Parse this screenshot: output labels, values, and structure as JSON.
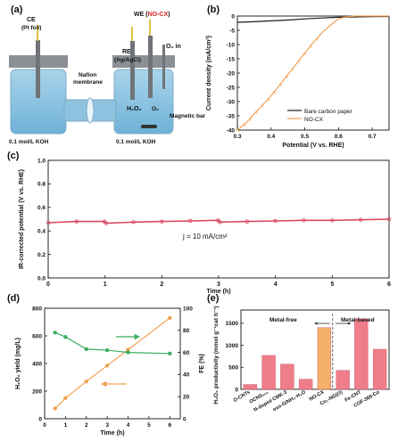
{
  "panels": {
    "a": {
      "label": "(a)",
      "ce_label": "CE",
      "ce_sub": "(Pt foil)",
      "re_label": "RE",
      "re_sub": "(Ag/AgCl)",
      "we_prefix": "WE (",
      "we_name": "NO-CX",
      "we_suffix": ")",
      "o2_label": "O₂ in",
      "membrane_label_1": "Nafion",
      "membrane_label_2": "membrane",
      "h2o2_label": "H₂O₂",
      "o2_cell_label": "O₂",
      "magnetic_label": "Magnetic bar",
      "electrolyte_left": "0.1 mol/L KOH",
      "electrolyte_right": "0.1 mol/L KOH"
    },
    "b": {
      "label": "(b)",
      "legend_1": "Bare carbon paper",
      "legend_2": "NO-CX"
    },
    "c": {
      "label": "(c)",
      "annotation": "j = 10 mA/cm²"
    },
    "d": {
      "label": "(d)"
    },
    "e": {
      "label": "(e)",
      "group_1": "Metal-free",
      "group_2": "Metal-based"
    }
  },
  "chart_data": [
    {
      "panel": "b",
      "type": "line",
      "xlabel": "Potential (V vs. RHE)",
      "ylabel": "Current density (mA/cm²)",
      "xlim": [
        0.3,
        0.75
      ],
      "ylim": [
        -40,
        0
      ],
      "xticks": [
        0.3,
        0.4,
        0.5,
        0.6,
        0.7
      ],
      "yticks": [
        0,
        -5,
        -10,
        -15,
        -20,
        -25,
        -30,
        -35,
        -40
      ],
      "legend_position": "bottom-right",
      "series": [
        {
          "name": "Bare carbon paper",
          "color": "#1a1a1a",
          "x": [
            0.3,
            0.35,
            0.4,
            0.45,
            0.5,
            0.55,
            0.6,
            0.65,
            0.7,
            0.75
          ],
          "y": [
            -2.2,
            -2.0,
            -1.7,
            -1.4,
            -1.0,
            -0.7,
            -0.45,
            -0.3,
            -0.2,
            -0.15
          ]
        },
        {
          "name": "NO-CX",
          "color": "#f2a054",
          "x": [
            0.3,
            0.33,
            0.36,
            0.4,
            0.44,
            0.48,
            0.52,
            0.55,
            0.58,
            0.6,
            0.62,
            0.65,
            0.7,
            0.75
          ],
          "y": [
            -40,
            -37,
            -33,
            -28,
            -22,
            -16,
            -10,
            -6,
            -2.8,
            -1.0,
            -0.3,
            0,
            0,
            0
          ]
        }
      ]
    },
    {
      "panel": "c",
      "type": "line",
      "xlabel": "Time (h)",
      "ylabel": "IR-corrected potential (V vs. RHE)",
      "xlim": [
        0,
        6
      ],
      "ylim": [
        0.0,
        1.0
      ],
      "xticks": [
        0,
        1,
        2,
        3,
        4,
        5,
        6
      ],
      "yticks": [
        0.0,
        0.2,
        0.4,
        0.6,
        0.8,
        1.0
      ],
      "series": [
        {
          "color": "#d9485f",
          "x": [
            0,
            0.5,
            0.99,
            1.02,
            1.5,
            2,
            2.5,
            2.99,
            3.02,
            3.5,
            4,
            4.5,
            5,
            5.5,
            6
          ],
          "y": [
            0.47,
            0.48,
            0.48,
            0.465,
            0.475,
            0.48,
            0.485,
            0.49,
            0.475,
            0.48,
            0.485,
            0.49,
            0.49,
            0.495,
            0.5
          ]
        }
      ]
    },
    {
      "panel": "d",
      "type": "line",
      "xlabel": "Time (h)",
      "ylabel": "H₂O₂ yield (mg/L)",
      "ylabel_right": "FE (%)",
      "xlim": [
        0,
        6.5
      ],
      "ylim": [
        0,
        800
      ],
      "ylim_right": [
        0,
        100
      ],
      "xticks": [
        0,
        1,
        2,
        3,
        4,
        5,
        6
      ],
      "yticks": [
        0,
        200,
        400,
        600,
        800
      ],
      "yticks_right": [
        0,
        20,
        40,
        60,
        80,
        100
      ],
      "series": [
        {
          "axis": "left",
          "color": "#f2a054",
          "x": [
            0.5,
            1,
            2,
            3,
            4,
            6
          ],
          "y": [
            75,
            150,
            270,
            385,
            500,
            730
          ]
        },
        {
          "axis": "right",
          "color": "#3dae5c",
          "x": [
            0.5,
            1,
            2,
            3,
            4,
            6
          ],
          "y": [
            78,
            74,
            63,
            62,
            60,
            59
          ]
        }
      ]
    },
    {
      "panel": "e",
      "type": "bar",
      "ylabel": "H₂O₂ productivity (mmol g⁻¹cat h⁻¹)",
      "ylim": [
        0,
        1800
      ],
      "yticks": [
        0,
        500,
        1000,
        1500
      ],
      "categories": [
        "O-CNTs",
        "OCNS₉₀₀",
        "N-doped CMK-3",
        "oxo-G/NH₃·H₂O",
        "NO-CX",
        "Co₁-NG(O)",
        "Fe-CNT",
        "COF-366-Co"
      ],
      "values": [
        110,
        770,
        570,
        230,
        1400,
        430,
        1600,
        910
      ],
      "highlight_index": 4,
      "bar_color": "#f07d8a",
      "highlight_color": "#f5b06a"
    }
  ]
}
